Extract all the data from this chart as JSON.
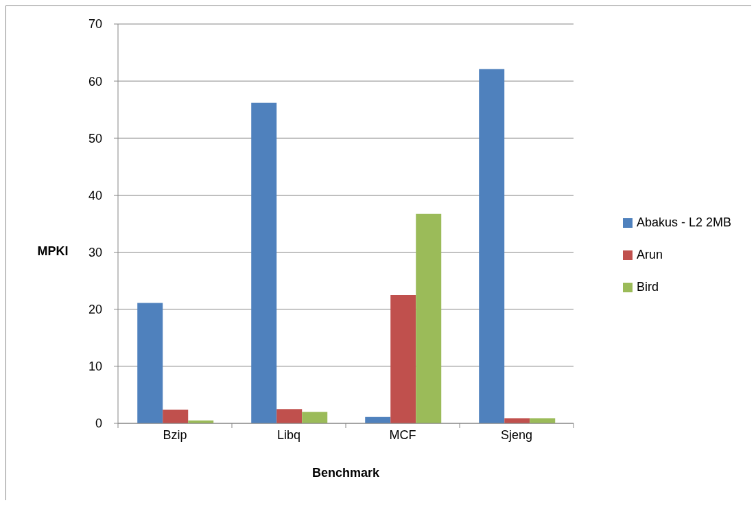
{
  "chart_data": {
    "type": "bar",
    "xlabel": "Benchmark",
    "ylabel": "MPKI",
    "categories": [
      "Bzip",
      "Libq",
      "MCF",
      "Sjeng"
    ],
    "series": [
      {
        "name": "Abakus - L2 2MB",
        "color": "#4f81bd",
        "values": [
          21.1,
          56.2,
          1.1,
          62.1
        ]
      },
      {
        "name": "Arun",
        "color": "#c0504d",
        "values": [
          2.4,
          2.5,
          22.5,
          0.9
        ]
      },
      {
        "name": "Bird",
        "color": "#9bbb59",
        "values": [
          0.5,
          2.0,
          36.7,
          0.9
        ]
      }
    ],
    "ylim": [
      0,
      70
    ],
    "yticks": [
      0,
      10,
      20,
      30,
      40,
      50,
      60,
      70
    ],
    "grid": "y",
    "legend": "right"
  }
}
